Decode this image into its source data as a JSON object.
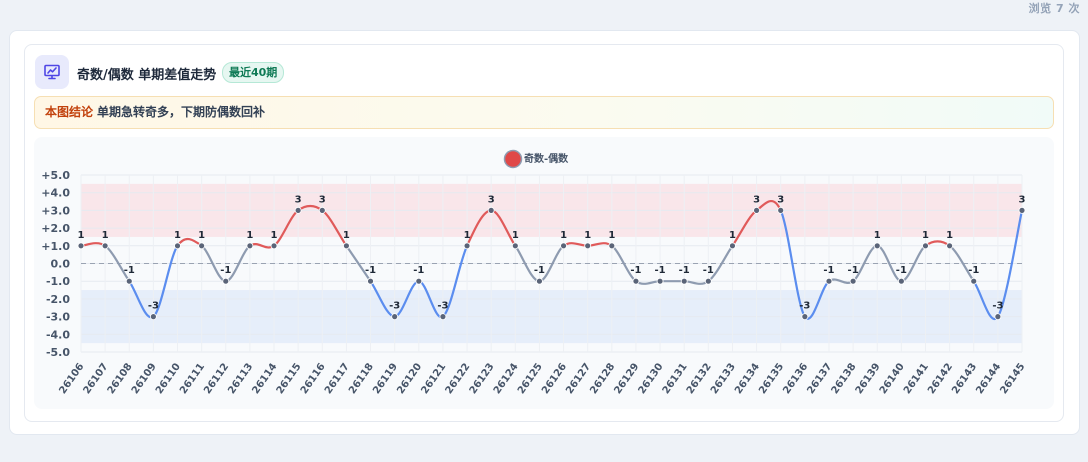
{
  "views_label": "浏览 7 次",
  "header": {
    "title": "奇数/偶数 单期差值走势",
    "badge": "最近40期",
    "icon": "chart-presentation-icon"
  },
  "conclusion": {
    "label": "本图结论",
    "text": "单期急转奇多，下期防偶数回补"
  },
  "colors": {
    "positive_line": "#e05a5a",
    "negative_line": "#5b8def",
    "neutral_line": "#8e9bb0",
    "positive_band": "#f9e6ea",
    "negative_band": "#e6eefa",
    "point": "#5a6478",
    "legend_fill": "#e04848"
  },
  "chart_data": {
    "type": "line",
    "legend": [
      "奇数-偶数"
    ],
    "legend_position": "top-center",
    "categories": [
      "26106",
      "26107",
      "26108",
      "26109",
      "26110",
      "26111",
      "26112",
      "26113",
      "26114",
      "26115",
      "26116",
      "26117",
      "26118",
      "26119",
      "26120",
      "26121",
      "26122",
      "26123",
      "26124",
      "26125",
      "26126",
      "26127",
      "26128",
      "26129",
      "26130",
      "26131",
      "26132",
      "26133",
      "26134",
      "26135",
      "26136",
      "26137",
      "26138",
      "26139",
      "26140",
      "26141",
      "26142",
      "26143",
      "26144",
      "26145"
    ],
    "series": [
      {
        "name": "奇数-偶数",
        "values": [
          1,
          1,
          -1,
          -3,
          1,
          1,
          -1,
          1,
          1,
          3,
          3,
          1,
          -1,
          -3,
          -1,
          -3,
          1,
          3,
          1,
          -1,
          1,
          1,
          1,
          -1,
          -1,
          -1,
          -1,
          1,
          3,
          3,
          -3,
          -1,
          -1,
          1,
          -1,
          1,
          1,
          -1,
          -3,
          3
        ]
      }
    ],
    "data_labels": [
      "1",
      "1",
      "-1",
      "-3",
      "1",
      "1",
      "-1",
      "1",
      "1",
      "3",
      "3",
      "1",
      "-1",
      "-3",
      "-1",
      "-3",
      "1",
      "3",
      "1",
      "-1",
      "1",
      "1",
      "1",
      "-1",
      "-1",
      "-1",
      "-1",
      "1",
      "3",
      "3",
      "-3",
      "-1",
      "-1",
      "1",
      "-1",
      "1",
      "1",
      "-1",
      "-3",
      "3"
    ],
    "y_ticks": [
      "+5.0",
      "+4.0",
      "+3.0",
      "+2.0",
      "+1.0",
      "0.0",
      "-1.0",
      "-2.0",
      "-3.0",
      "-4.0",
      "-5.0"
    ],
    "ylim": [
      -5,
      5
    ],
    "bands": [
      {
        "from": 1.5,
        "to": 4.5,
        "tone": "positive"
      },
      {
        "from": -4.5,
        "to": -1.5,
        "tone": "negative"
      }
    ],
    "zero_line": true,
    "grid": true
  }
}
